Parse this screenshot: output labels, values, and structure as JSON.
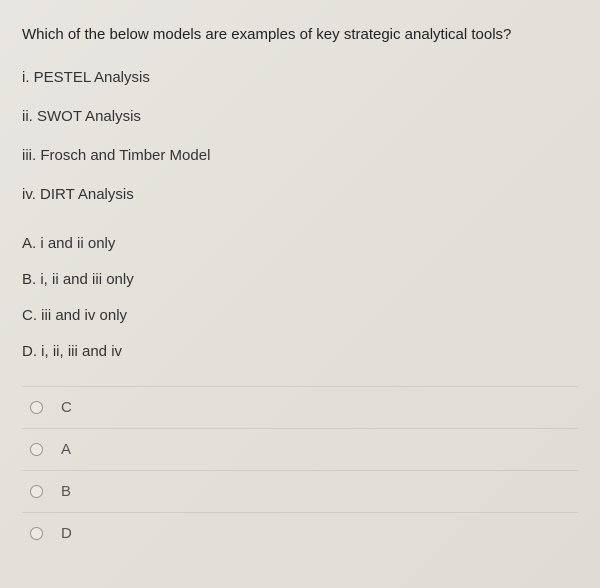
{
  "question": "Which of the below models are examples of key strategic analytical tools?",
  "items": [
    "i. PESTEL Analysis",
    "ii. SWOT Analysis",
    "iii. Frosch and Timber Model",
    "iv. DIRT Analysis"
  ],
  "options": [
    "A. i and ii only",
    "B. i, ii and iii only",
    "C. iii and iv only",
    "D. i, ii, iii and iv"
  ],
  "answers": [
    "C",
    "A",
    "B",
    "D"
  ],
  "colors": {
    "background": "#e4e2da",
    "text_primary": "#2a2a2a",
    "text_secondary": "#555555",
    "divider": "#b4b2aa",
    "radio_border": "#999690"
  },
  "typography": {
    "font_family": "Segoe UI, Arial, sans-serif",
    "question_fontsize": 15,
    "item_fontsize": 15,
    "answer_fontsize": 15
  }
}
